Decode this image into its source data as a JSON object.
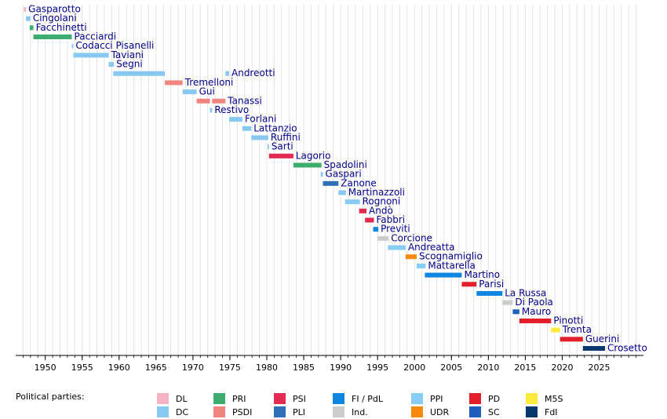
{
  "chart_data": {
    "type": "timeline",
    "xlim": [
      1946,
      2031
    ],
    "xticks": [
      1950,
      1955,
      1960,
      1965,
      1970,
      1975,
      1980,
      1985,
      1990,
      1995,
      2000,
      2005,
      2010,
      2015,
      2020,
      2025
    ],
    "x_minor_ticks": [
      1947,
      1948,
      1949,
      1950,
      1951,
      1952,
      1953,
      1954,
      1955,
      1956,
      1957,
      1958,
      1959,
      1960,
      1961,
      1962,
      1963,
      1964,
      1965,
      1966,
      1967,
      1968,
      1969,
      1970,
      1971,
      1972,
      1973,
      1974,
      1975,
      1976,
      1977,
      1978,
      1979,
      1980,
      1981,
      1982,
      1983,
      1984,
      1985,
      1986,
      1987,
      1988,
      1989,
      1990,
      1991,
      1992,
      1993,
      1994,
      1995,
      1996,
      1997,
      1998,
      1999,
      2000,
      2001,
      2002,
      2003,
      2004,
      2005,
      2006,
      2007,
      2008,
      2009,
      2010,
      2011,
      2012,
      2013,
      2014,
      2015,
      2016,
      2017,
      2018,
      2019,
      2020,
      2021,
      2022,
      2023,
      2024,
      2025,
      2026,
      2027,
      2028,
      2029,
      2030
    ],
    "grid": true,
    "legend_title": "Political parties:",
    "parties": [
      {
        "name": "DL",
        "color": "#f7b3c2"
      },
      {
        "name": "DC",
        "color": "#87c9f0"
      },
      {
        "name": "PRI",
        "color": "#3cad6e"
      },
      {
        "name": "PSDI",
        "color": "#f0857f"
      },
      {
        "name": "PSI",
        "color": "#e32b52"
      },
      {
        "name": "PLI",
        "color": "#2e6fb8"
      },
      {
        "name": "FI / PdL",
        "color": "#0f86e0"
      },
      {
        "name": "Ind.",
        "color": "#cccccc"
      },
      {
        "name": "PPI",
        "color": "#87cdf5"
      },
      {
        "name": "UDR",
        "color": "#f58a0f"
      },
      {
        "name": "PD",
        "color": "#e3202a"
      },
      {
        "name": "SC",
        "color": "#1d5fbd"
      },
      {
        "name": "M5S",
        "color": "#fcea3c"
      },
      {
        "name": "FdI",
        "color": "#06386b"
      }
    ],
    "ministers": [
      {
        "name": "Gasparotto",
        "party": "DL",
        "terms": [
          [
            1947.1,
            1947.4
          ]
        ]
      },
      {
        "name": "Cingolani",
        "party": "DC",
        "terms": [
          [
            1947.4,
            1948.0
          ]
        ]
      },
      {
        "name": "Facchinetti",
        "party": "PRI",
        "terms": [
          [
            1947.9,
            1948.4
          ]
        ]
      },
      {
        "name": "Pacciardi",
        "party": "PRI",
        "terms": [
          [
            1948.4,
            1953.6
          ]
        ]
      },
      {
        "name": "Codacci Pisanelli",
        "party": "DC",
        "terms": [
          [
            1953.6,
            1953.8
          ]
        ]
      },
      {
        "name": "Taviani",
        "party": "DC",
        "terms": [
          [
            1953.8,
            1958.6
          ]
        ]
      },
      {
        "name": "Segni",
        "party": "DC",
        "terms": [
          [
            1958.6,
            1959.3
          ]
        ]
      },
      {
        "name": "Andreotti",
        "party": "DC",
        "terms": [
          [
            1959.2,
            1966.2
          ],
          [
            1974.4,
            1974.9
          ]
        ]
      },
      {
        "name": "Tremelloni",
        "party": "PSDI",
        "terms": [
          [
            1966.2,
            1968.6
          ]
        ]
      },
      {
        "name": "Gui",
        "party": "DC",
        "terms": [
          [
            1968.6,
            1970.5
          ]
        ]
      },
      {
        "name": "Tanassi",
        "party": "PSDI",
        "terms": [
          [
            1970.5,
            1972.3
          ],
          [
            1972.6,
            1974.4
          ]
        ]
      },
      {
        "name": "Restivo",
        "party": "DC",
        "terms": [
          [
            1972.3,
            1972.6
          ]
        ]
      },
      {
        "name": "Forlani",
        "party": "DC",
        "terms": [
          [
            1974.9,
            1976.7
          ]
        ]
      },
      {
        "name": "Lattanzio",
        "party": "DC",
        "terms": [
          [
            1976.7,
            1977.9
          ]
        ]
      },
      {
        "name": "Ruffini",
        "party": "DC",
        "terms": [
          [
            1977.9,
            1980.2
          ]
        ]
      },
      {
        "name": "Sarti",
        "party": "DC",
        "terms": [
          [
            1980.1,
            1980.3
          ]
        ]
      },
      {
        "name": "Lagorio",
        "party": "PSI",
        "terms": [
          [
            1980.3,
            1983.6
          ]
        ]
      },
      {
        "name": "Spadolini",
        "party": "PRI",
        "terms": [
          [
            1983.6,
            1987.4
          ]
        ]
      },
      {
        "name": "Gaspari",
        "party": "DC",
        "terms": [
          [
            1987.3,
            1987.6
          ]
        ]
      },
      {
        "name": "Zanone",
        "party": "PLI",
        "terms": [
          [
            1987.6,
            1989.7
          ]
        ]
      },
      {
        "name": "Martinazzoli",
        "party": "DC",
        "terms": [
          [
            1989.7,
            1990.7
          ]
        ]
      },
      {
        "name": "Rognoni",
        "party": "DC",
        "terms": [
          [
            1990.6,
            1992.6
          ]
        ]
      },
      {
        "name": "Andò",
        "party": "PSI",
        "terms": [
          [
            1992.5,
            1993.5
          ]
        ]
      },
      {
        "name": "Fabbri",
        "party": "PSI",
        "terms": [
          [
            1993.3,
            1994.5
          ]
        ]
      },
      {
        "name": "Previti",
        "party": "FI / PdL",
        "terms": [
          [
            1994.4,
            1995.1
          ]
        ]
      },
      {
        "name": "Corcione",
        "party": "Ind.",
        "terms": [
          [
            1995.0,
            1996.5
          ]
        ]
      },
      {
        "name": "Andreatta",
        "party": "PPI",
        "terms": [
          [
            1996.4,
            1998.8
          ]
        ]
      },
      {
        "name": "Scognamiglio",
        "party": "UDR",
        "terms": [
          [
            1998.8,
            2000.3
          ]
        ]
      },
      {
        "name": "Mattarella",
        "party": "PPI",
        "terms": [
          [
            2000.3,
            2001.5
          ]
        ]
      },
      {
        "name": "Martino",
        "party": "FI / PdL",
        "terms": [
          [
            2001.4,
            2006.4
          ]
        ]
      },
      {
        "name": "Parisi",
        "party": "PD",
        "terms": [
          [
            2006.4,
            2008.4
          ]
        ]
      },
      {
        "name": "La Russa",
        "party": "FI / PdL",
        "terms": [
          [
            2008.4,
            2011.9
          ]
        ]
      },
      {
        "name": "Di Paola",
        "party": "Ind.",
        "terms": [
          [
            2011.9,
            2013.3
          ]
        ]
      },
      {
        "name": "Mauro",
        "party": "SC",
        "terms": [
          [
            2013.3,
            2014.2
          ]
        ]
      },
      {
        "name": "Pinotti",
        "party": "PD",
        "terms": [
          [
            2014.2,
            2018.5
          ]
        ]
      },
      {
        "name": "Trenta",
        "party": "M5S",
        "terms": [
          [
            2018.5,
            2019.7
          ]
        ]
      },
      {
        "name": "Guerini",
        "party": "PD",
        "terms": [
          [
            2019.7,
            2022.8
          ]
        ]
      },
      {
        "name": "Crosetto",
        "party": "FdI",
        "terms": [
          [
            2022.8,
            2025.8
          ]
        ]
      }
    ]
  }
}
